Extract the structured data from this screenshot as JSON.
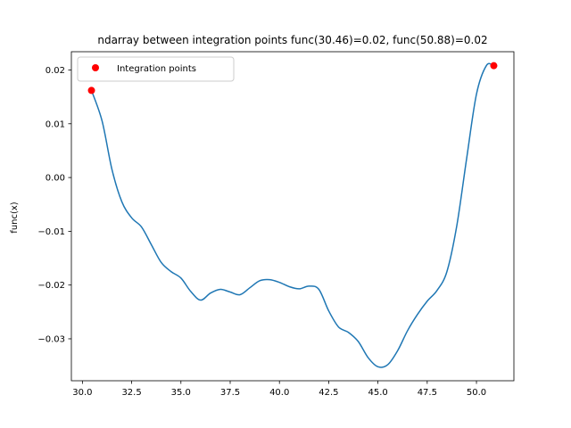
{
  "chart_data": {
    "type": "line",
    "title": "ndarray between integration points func(30.46)=0.02, func(50.88)=0.02",
    "xlabel": "",
    "ylabel": "func(x)",
    "xlim": [
      29.44,
      51.9
    ],
    "ylim": [
      -0.0378,
      0.0234
    ],
    "x_ticks": [
      30.0,
      32.5,
      35.0,
      37.5,
      40.0,
      42.5,
      45.0,
      47.5,
      50.0
    ],
    "x_tick_labels": [
      "30.0",
      "32.5",
      "35.0",
      "37.5",
      "40.0",
      "42.5",
      "45.0",
      "47.5",
      "50.0"
    ],
    "y_ticks": [
      -0.03,
      -0.02,
      -0.01,
      0.0,
      0.01,
      0.02
    ],
    "y_tick_labels": [
      "−0.03",
      "−0.02",
      "−0.01",
      "0.00",
      "0.01",
      "0.02"
    ],
    "grid": false,
    "legend_placement": "top-left",
    "line_color": "#1f77b4",
    "point_color": "#ff0000",
    "series": [
      {
        "kind": "line",
        "x": [
          30.46,
          31.0,
          31.5,
          32.0,
          32.5,
          33.0,
          33.5,
          34.0,
          34.5,
          35.0,
          35.5,
          36.0,
          36.5,
          37.0,
          37.5,
          38.0,
          38.5,
          39.0,
          39.5,
          40.0,
          40.5,
          41.0,
          41.5,
          42.0,
          42.5,
          43.0,
          43.5,
          44.0,
          44.5,
          45.0,
          45.5,
          46.0,
          46.5,
          47.0,
          47.5,
          48.0,
          48.5,
          49.0,
          49.5,
          50.0,
          50.5,
          50.88
        ],
        "y": [
          0.0162,
          0.0105,
          0.0015,
          -0.0045,
          -0.0075,
          -0.0092,
          -0.0125,
          -0.0158,
          -0.0175,
          -0.0187,
          -0.0212,
          -0.0228,
          -0.0215,
          -0.0208,
          -0.0213,
          -0.0218,
          -0.0205,
          -0.0192,
          -0.019,
          -0.0195,
          -0.0203,
          -0.0207,
          -0.0202,
          -0.0208,
          -0.0248,
          -0.0278,
          -0.0288,
          -0.0305,
          -0.0335,
          -0.0352,
          -0.0348,
          -0.0322,
          -0.0285,
          -0.0255,
          -0.023,
          -0.021,
          -0.0175,
          -0.009,
          0.0035,
          0.0155,
          0.0208,
          0.0208
        ]
      },
      {
        "kind": "scatter",
        "name": "Integration points",
        "x": [
          30.46,
          50.88
        ],
        "y": [
          0.0162,
          0.0208
        ]
      }
    ]
  }
}
